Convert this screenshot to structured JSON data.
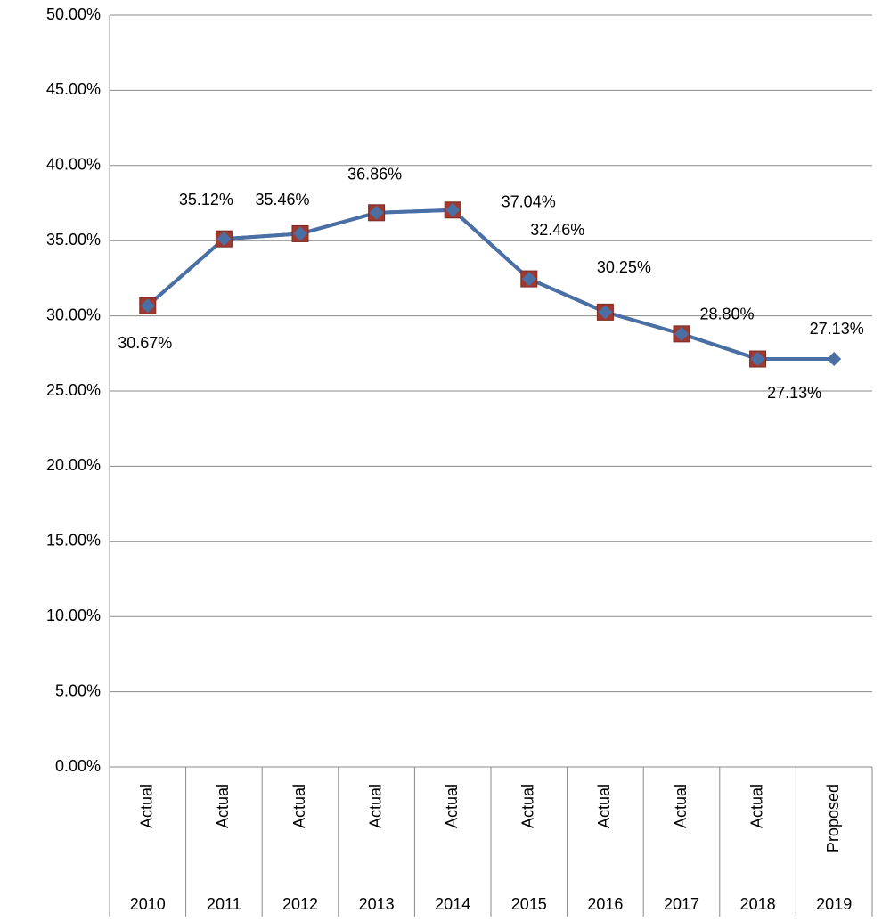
{
  "chart_data": {
    "type": "line",
    "categories": [
      "2010",
      "2011",
      "2012",
      "2013",
      "2014",
      "2015",
      "2016",
      "2017",
      "2018",
      "2019"
    ],
    "subcategories": [
      "Actual",
      "Actual",
      "Actual",
      "Actual",
      "Actual",
      "Actual",
      "Actual",
      "Actual",
      "Actual",
      "Proposed"
    ],
    "series": [
      {
        "color": "#4a6fa5",
        "marker": "diamond",
        "values": [
          30.67,
          35.12,
          35.46,
          36.86,
          37.04,
          32.46,
          30.25,
          28.8,
          27.13,
          27.13
        ],
        "value_labels": [
          "30.67%",
          "35.12%",
          "35.46%",
          "36.86%",
          "37.04%",
          "32.46%",
          "30.25%",
          "28.80%",
          "27.13%",
          "27.13%"
        ]
      },
      {
        "color": "#a0392f",
        "marker": "square",
        "values": [
          30.67,
          35.12,
          35.46,
          36.86,
          37.04,
          32.46,
          30.25,
          28.8,
          27.13,
          null
        ]
      }
    ],
    "ylim": [
      0,
      50
    ],
    "yticks": [
      {
        "value": 0,
        "label": "0.00%"
      },
      {
        "value": 5,
        "label": "5.00%"
      },
      {
        "value": 10,
        "label": "10.00%"
      },
      {
        "value": 15,
        "label": "15.00%"
      },
      {
        "value": 20,
        "label": "20.00%"
      },
      {
        "value": 25,
        "label": "25.00%"
      },
      {
        "value": 30,
        "label": "30.00%"
      },
      {
        "value": 35,
        "label": "35.00%"
      },
      {
        "value": 40,
        "label": "40.00%"
      },
      {
        "value": 45,
        "label": "45.00%"
      },
      {
        "value": 50,
        "label": "50.00%"
      }
    ],
    "grid": true
  }
}
